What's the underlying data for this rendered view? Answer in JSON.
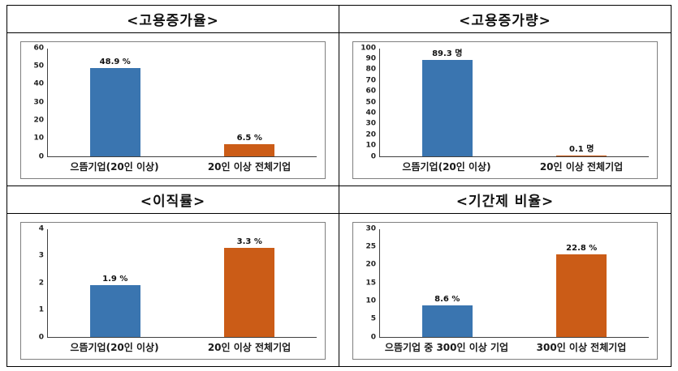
{
  "colors": {
    "bar_blue": "#3a75b0",
    "bar_orange": "#cb5c17",
    "axis_line": "#404040",
    "chart_border": "#7f7f7f",
    "grid_border": "#000000"
  },
  "chart_data": [
    {
      "type": "bar",
      "title": "<고용증가율>",
      "categories": [
        "으뜸기업(20인 이상)",
        "20인 이상 전체기업"
      ],
      "values": [
        48.9,
        6.5
      ],
      "value_labels": [
        "48.9 %",
        "6.5 %"
      ],
      "unit": "%",
      "ylim": [
        0,
        60
      ],
      "yticks": [
        0,
        10,
        20,
        30,
        40,
        50,
        60
      ],
      "bar_colors": [
        "#3a75b0",
        "#cb5c17"
      ],
      "grid": false,
      "legend": "none"
    },
    {
      "type": "bar",
      "title": "<고용증가량>",
      "categories": [
        "으뜸기업(20인 이상)",
        "20인 이상 전체기업"
      ],
      "values": [
        89.3,
        0.1
      ],
      "value_labels": [
        "89.3 명",
        "0.1 명"
      ],
      "unit": "명",
      "ylim": [
        0,
        100
      ],
      "yticks": [
        0,
        10,
        20,
        30,
        40,
        50,
        60,
        70,
        80,
        90,
        100
      ],
      "bar_colors": [
        "#3a75b0",
        "#cb5c17"
      ],
      "grid": false,
      "legend": "none"
    },
    {
      "type": "bar",
      "title": "<이직률>",
      "categories": [
        "으뜸기업(20인 이상)",
        "20인 이상 전체기업"
      ],
      "values": [
        1.9,
        3.3
      ],
      "value_labels": [
        "1.9 %",
        "3.3 %"
      ],
      "unit": "%",
      "ylim": [
        0,
        4
      ],
      "yticks": [
        0,
        1,
        2,
        3,
        4
      ],
      "bar_colors": [
        "#3a75b0",
        "#cb5c17"
      ],
      "grid": false,
      "legend": "none"
    },
    {
      "type": "bar",
      "title": "<기간제 비율>",
      "categories": [
        "으뜸기업 중 300인 이상 기업",
        "300인 이상 전체기업"
      ],
      "values": [
        8.6,
        22.8
      ],
      "value_labels": [
        "8.6 %",
        "22.8 %"
      ],
      "unit": "%",
      "ylim": [
        0,
        30
      ],
      "yticks": [
        0,
        5,
        10,
        15,
        20,
        25,
        30
      ],
      "bar_colors": [
        "#3a75b0",
        "#cb5c17"
      ],
      "grid": false,
      "legend": "none"
    }
  ]
}
